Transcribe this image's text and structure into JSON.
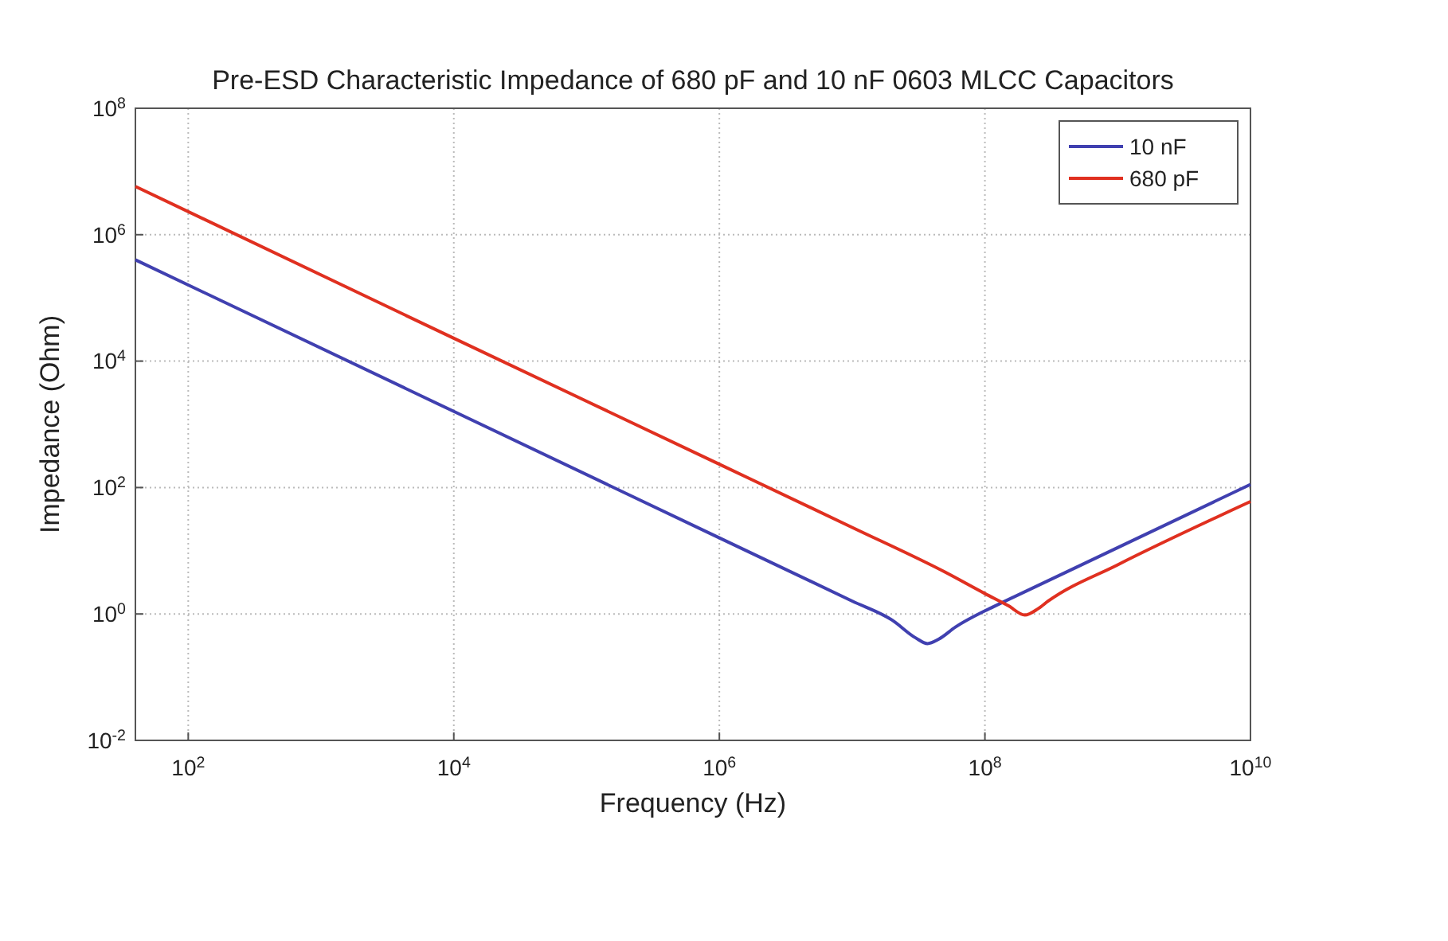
{
  "chart_data": {
    "type": "line",
    "title": "Pre-ESD Characteristic Impedance of 680 pF and 10 nF 0603 MLCC Capacitors",
    "xlabel": "Frequency (Hz)",
    "ylabel": "Impedance (Ohm)",
    "log": "xy",
    "grid": true,
    "legend": "top right",
    "line_style": "solid",
    "marker": "none",
    "xlim": [
      40,
      10000000000
    ],
    "ylim": [
      0.01,
      100000000
    ],
    "xticks": [
      {
        "value": 100,
        "label": "10$^{2}$"
      },
      {
        "value": 10000,
        "label": "10$^{4}$"
      },
      {
        "value": 1000000,
        "label": "10$^{6}$"
      },
      {
        "value": 100000000,
        "label": "10$^{8}$"
      },
      {
        "value": 10000000000,
        "label": "10$^{10}$"
      }
    ],
    "yticks": [
      {
        "value": 0.01,
        "label": "10$^{-2}$"
      },
      {
        "value": 1,
        "label": "10$^{0}$"
      },
      {
        "value": 100,
        "label": "10$^{2}$"
      },
      {
        "value": 10000,
        "label": "10$^{4}$"
      },
      {
        "value": 1000000,
        "label": "10$^{6}$"
      },
      {
        "value": 100000000,
        "label": "10$^{8}$"
      }
    ],
    "series": [
      {
        "name": "10 nF",
        "color": "#4040b0",
        "x": [
          40,
          10000,
          1000000,
          10000000,
          20000000,
          30000000,
          37000000,
          45000000,
          60000000,
          100000000,
          130000000,
          1000000000,
          10000000000
        ],
        "values": [
          400000,
          1600,
          16,
          1.6,
          0.8,
          0.42,
          0.34,
          0.4,
          0.62,
          1.12,
          1.46,
          11.2,
          112
        ]
      },
      {
        "name": "680 pF",
        "color": "#e03020",
        "x": [
          40,
          10000,
          1000000,
          10000000,
          50000000,
          100000000,
          150000000,
          200000000,
          250000000,
          300000000,
          1000000000,
          10000000000
        ],
        "values": [
          5800000,
          23000,
          234,
          23.4,
          4.6,
          2.1,
          1.35,
          0.96,
          1.2,
          1.6,
          6,
          60
        ]
      }
    ]
  }
}
